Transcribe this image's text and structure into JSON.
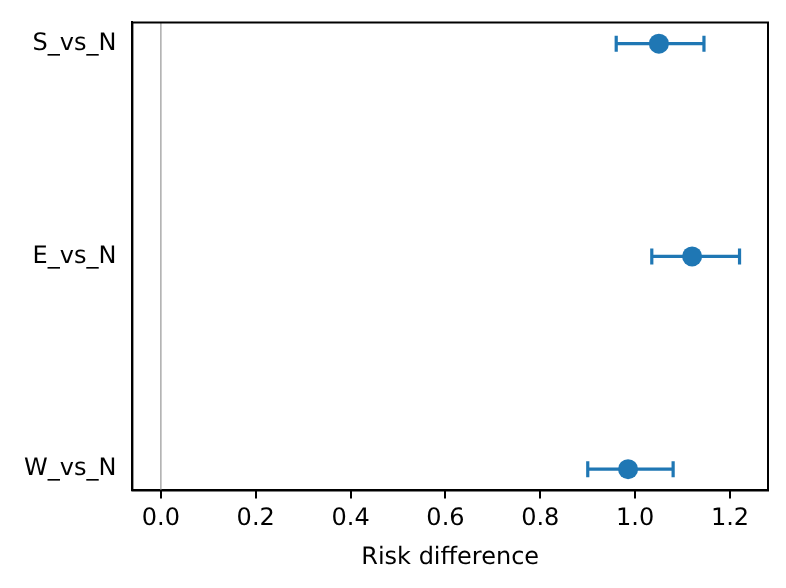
{
  "chart_data": {
    "type": "scatter",
    "orientation": "horizontal",
    "xlabel": "Risk difference",
    "categories": [
      "S_vs_N",
      "E_vs_N",
      "W_vs_N"
    ],
    "series": [
      {
        "color": "#1f77b4",
        "values": [
          1.05,
          1.12,
          0.985
        ],
        "errors": [
          [
            0.96,
            1.145
          ],
          [
            1.035,
            1.22
          ],
          [
            0.9,
            1.08
          ]
        ]
      }
    ],
    "xlim": [
      -0.06,
      1.28
    ],
    "xticks": [
      {
        "value": 0,
        "label": "0.0"
      },
      {
        "value": 0.2,
        "label": "0.2"
      },
      {
        "value": 0.4,
        "label": "0.4"
      },
      {
        "value": 0.6,
        "label": "0.6"
      },
      {
        "value": 0.8,
        "label": "0.8"
      },
      {
        "value": 1,
        "label": "1.0"
      },
      {
        "value": 1.2,
        "label": "1.2"
      }
    ],
    "ref_lines": [
      {
        "axis": "x",
        "value": 0,
        "color": "#b0b0b0"
      }
    ],
    "marker": "circle",
    "grid": false,
    "legend": false
  }
}
